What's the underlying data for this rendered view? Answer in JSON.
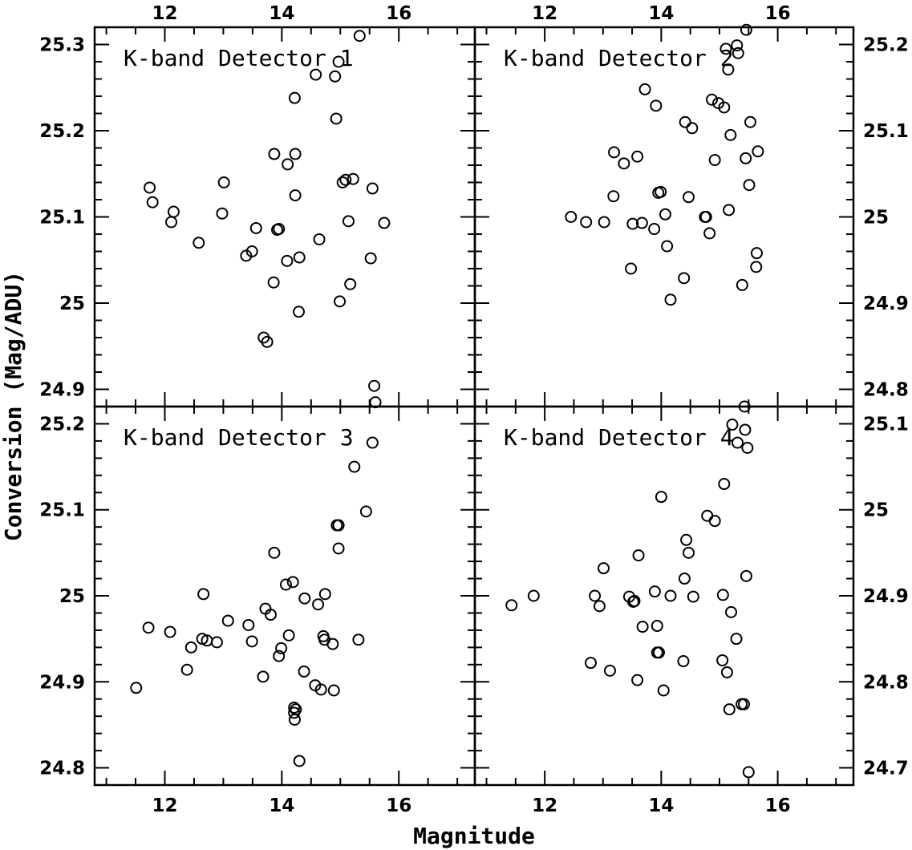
{
  "figure": {
    "xlabel": "Magnitude",
    "ylabel": "Conversion (Mag/ADU)"
  },
  "chart_data": [
    {
      "type": "scatter",
      "title": "K-band Detector 1",
      "xlim": [
        10.8,
        17.3
      ],
      "ylim": [
        24.88,
        25.32
      ],
      "xticks": [
        "12",
        "14",
        "16"
      ],
      "yticks": [
        "24.9",
        "25",
        "25.1",
        "25.2",
        "25.3"
      ],
      "x": [
        11.74,
        11.79,
        12.11,
        12.15,
        12.58,
        12.98,
        13.01,
        13.39,
        13.49,
        13.56,
        13.69,
        13.75,
        13.86,
        13.87,
        13.92,
        13.95,
        14.09,
        14.1,
        14.22,
        14.23,
        14.23,
        14.29,
        14.3,
        14.58,
        14.64,
        14.91,
        14.93,
        14.97,
        14.99,
        15.04,
        15.09,
        15.14,
        15.17,
        15.22,
        15.33,
        15.52,
        15.55,
        15.58,
        15.6,
        15.75
      ],
      "y": [
        25.134,
        25.117,
        25.094,
        25.106,
        25.07,
        25.104,
        25.14,
        25.055,
        25.06,
        25.087,
        24.96,
        24.955,
        25.024,
        25.173,
        25.085,
        25.086,
        25.049,
        25.161,
        25.238,
        25.125,
        25.173,
        24.99,
        25.053,
        25.265,
        25.074,
        25.263,
        25.214,
        25.28,
        25.002,
        25.14,
        25.143,
        25.095,
        25.022,
        25.144,
        25.31,
        25.052,
        25.133,
        24.904,
        24.885,
        25.093
      ]
    },
    {
      "type": "scatter",
      "title": "K-band Detector 2",
      "xlim": [
        10.8,
        17.3
      ],
      "ylim": [
        24.78,
        25.22
      ],
      "xticks": [
        "12",
        "14",
        "16"
      ],
      "yticks": [
        "24.8",
        "24.9",
        "25",
        "25.1",
        "25.2"
      ],
      "x": [
        12.45,
        12.71,
        13.02,
        13.18,
        13.19,
        13.36,
        13.48,
        13.51,
        13.59,
        13.67,
        13.72,
        13.88,
        13.91,
        13.95,
        13.99,
        14.07,
        14.1,
        14.16,
        14.39,
        14.41,
        14.47,
        14.53,
        14.75,
        14.77,
        14.83,
        14.87,
        14.92,
        14.98,
        15.08,
        15.11,
        15.15,
        15.16,
        15.19,
        15.3,
        15.32,
        15.39,
        15.43,
        15.45,
        15.46,
        15.51,
        15.53,
        15.63,
        15.64,
        15.66
      ],
      "y": [
        25.0,
        24.994,
        24.994,
        25.024,
        25.075,
        25.062,
        24.94,
        24.992,
        25.07,
        24.993,
        25.148,
        24.986,
        25.129,
        25.028,
        25.029,
        25.003,
        24.966,
        24.904,
        24.929,
        25.11,
        25.023,
        25.103,
        25.0,
        25.0,
        24.981,
        25.136,
        25.066,
        25.132,
        25.127,
        25.195,
        25.171,
        25.008,
        25.095,
        25.199,
        25.19,
        24.921,
        24.78,
        25.068,
        25.217,
        25.037,
        25.11,
        24.942,
        24.958,
        25.076
      ]
    },
    {
      "type": "scatter",
      "title": "K-band Detector 3",
      "xlim": [
        10.8,
        17.3
      ],
      "ylim": [
        24.78,
        25.22
      ],
      "xticks": [
        "12",
        "14",
        "16"
      ],
      "yticks": [
        "24.8",
        "24.9",
        "25",
        "25.1",
        "25.2"
      ],
      "x": [
        11.51,
        11.72,
        12.09,
        12.38,
        12.45,
        12.64,
        12.66,
        12.72,
        12.89,
        13.08,
        13.43,
        13.49,
        13.68,
        13.72,
        13.81,
        13.87,
        13.95,
        13.99,
        14.07,
        14.12,
        14.19,
        14.21,
        14.21,
        14.22,
        14.24,
        14.3,
        14.38,
        14.39,
        14.57,
        14.62,
        14.67,
        14.71,
        14.73,
        14.74,
        14.87,
        14.89,
        14.94,
        14.97,
        14.97,
        15.24,
        15.31,
        15.44,
        15.55
      ],
      "y": [
        24.893,
        24.963,
        24.958,
        24.914,
        24.94,
        24.95,
        25.002,
        24.948,
        24.946,
        24.971,
        24.966,
        24.947,
        24.906,
        24.985,
        24.978,
        25.05,
        24.93,
        24.939,
        25.013,
        24.954,
        25.016,
        24.87,
        24.864,
        24.856,
        24.868,
        24.808,
        24.912,
        24.997,
        24.896,
        24.99,
        24.891,
        24.953,
        24.949,
        25.002,
        24.944,
        24.89,
        25.082,
        25.055,
        25.082,
        25.15,
        24.949,
        25.098,
        25.178
      ]
    },
    {
      "type": "scatter",
      "title": "K-band Detector 4",
      "xlim": [
        10.8,
        17.3
      ],
      "ylim": [
        24.68,
        25.12
      ],
      "xticks": [
        "12",
        "14",
        "16"
      ],
      "yticks": [
        "24.7",
        "24.8",
        "24.9",
        "25",
        "25.1"
      ],
      "x": [
        11.43,
        11.81,
        12.79,
        12.86,
        12.94,
        13.01,
        13.12,
        13.45,
        13.52,
        13.54,
        13.59,
        13.61,
        13.68,
        13.89,
        13.93,
        13.93,
        13.96,
        14.0,
        14.04,
        14.16,
        14.38,
        14.4,
        14.43,
        14.47,
        14.55,
        14.79,
        14.92,
        15.05,
        15.06,
        15.08,
        15.13,
        15.17,
        15.2,
        15.22,
        15.29,
        15.31,
        15.38,
        15.42,
        15.44,
        15.46,
        15.48,
        15.5
      ],
      "y": [
        24.889,
        24.9,
        24.822,
        24.9,
        24.888,
        24.932,
        24.813,
        24.899,
        24.893,
        24.894,
        24.802,
        24.947,
        24.864,
        24.905,
        24.834,
        24.865,
        24.834,
        25.015,
        24.79,
        24.9,
        24.824,
        24.92,
        24.965,
        24.95,
        24.899,
        24.993,
        24.987,
        24.825,
        24.901,
        25.03,
        24.811,
        24.768,
        24.881,
        25.099,
        24.85,
        25.078,
        24.774,
        24.774,
        25.093,
        24.923,
        25.072,
        24.695
      ]
    }
  ]
}
